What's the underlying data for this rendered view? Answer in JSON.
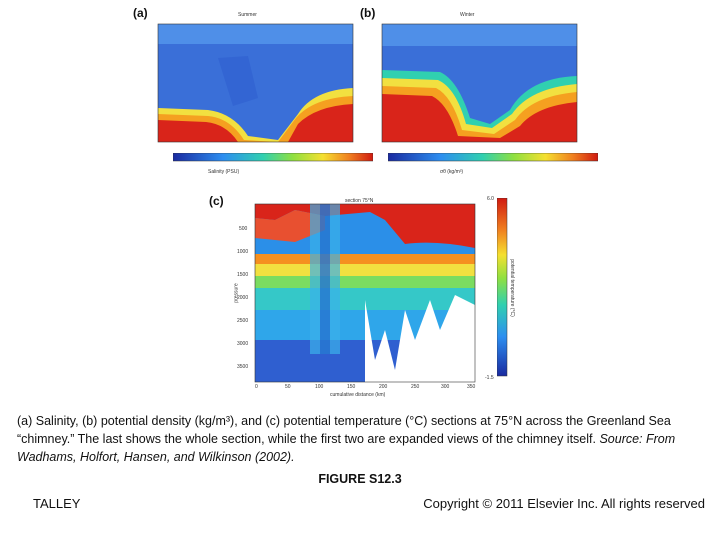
{
  "panels": {
    "a": {
      "letter": "(a)",
      "header": "Summer",
      "colorbar_title": "Salinity (PSU)"
    },
    "b": {
      "letter": "(b)",
      "header": "Winter",
      "colorbar_title": "σθ (kg/m³)"
    },
    "c": {
      "letter": "(c)",
      "header": "section 75°N",
      "ylabel": "pressure",
      "xlabel": "cumulative distance (km)",
      "y_ticks": [
        "500",
        "1000",
        "1500",
        "2000",
        "2500",
        "3000",
        "3500"
      ],
      "x_ticks": [
        "0",
        "50",
        "100",
        "150",
        "200",
        "250",
        "300",
        "350"
      ],
      "colorbar_top": "6.0",
      "colorbar_bottom": "-1.5",
      "colorbar_label": "potential temperature (°C)"
    }
  },
  "caption": {
    "main": "(a) Salinity, (b) potential density (kg/m³), and (c) potential temperature (°C) sections at 75°N across the Greenland Sea “chimney.” The last shows the whole section, while the first two are expanded views of the chimney itself. ",
    "source": "Source: From Wadhams, Holfort, Hansen, and Wilkinson (2002)."
  },
  "figure_label": "FIGURE S12.3",
  "footer": {
    "left": "TALLEY",
    "right": "Copyright © 2011 Elsevier Inc. All rights reserved"
  }
}
